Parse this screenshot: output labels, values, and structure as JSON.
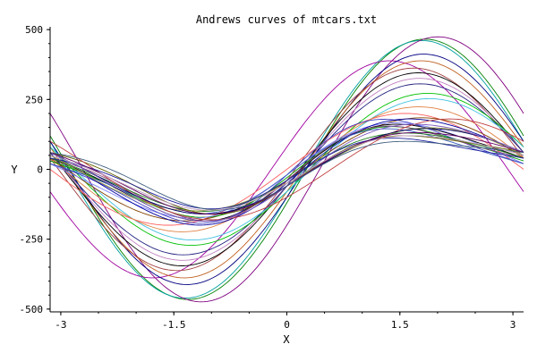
{
  "chart_data": {
    "type": "line",
    "title": "Andrews curves of mtcars.txt",
    "xlabel": "X",
    "ylabel": "Y",
    "xlim": [
      -3.14159,
      3.14159
    ],
    "ylim": [
      -510,
      510
    ],
    "xticks": [
      -3,
      -1.5,
      0,
      1.5,
      3
    ],
    "xtick_labels": [
      "-3",
      "-1.5",
      "0",
      "1.5",
      "3"
    ],
    "yticks": [
      -500,
      -250,
      0,
      250,
      500
    ],
    "ytick_labels": [
      "-500",
      "-250",
      "0",
      "250",
      "500"
    ],
    "grid": false,
    "legend": "none",
    "series_note": "32 Andrews curves, one per row; f(t) = x1/sqrt(2) + x2 sin t + x3 cos t + x4 sin 2t + x5 cos 2t",
    "series": [
      {
        "color": "#008000",
        "coeffs": [
          0,
          450,
          -120,
          0,
          0
        ]
      },
      {
        "color": "#00a0a0",
        "coeffs": [
          0,
          450,
          -100,
          0,
          0
        ]
      },
      {
        "color": "#800080",
        "coeffs": [
          0,
          430,
          -200,
          0,
          0
        ]
      },
      {
        "color": "#a000a0",
        "coeffs": [
          0,
          380,
          80,
          0,
          0
        ]
      },
      {
        "color": "#000080",
        "coeffs": [
          0,
          400,
          -100,
          0,
          0
        ]
      },
      {
        "color": "#c06020",
        "coeffs": [
          0,
          380,
          -80,
          0,
          0
        ]
      },
      {
        "color": "#a04040",
        "coeffs": [
          0,
          360,
          -40,
          0,
          0
        ]
      },
      {
        "color": "#000000",
        "coeffs": [
          0,
          340,
          -60,
          0,
          0
        ]
      },
      {
        "color": "#c080c0",
        "coeffs": [
          0,
          320,
          -60,
          0,
          0
        ]
      },
      {
        "color": "#202080",
        "coeffs": [
          0,
          300,
          -60,
          0,
          0
        ]
      },
      {
        "color": "#00c000",
        "coeffs": [
          0,
          260,
          -80,
          0,
          0
        ]
      },
      {
        "color": "#40c0e0",
        "coeffs": [
          0,
          240,
          -80,
          0,
          0
        ]
      },
      {
        "color": "#ff6060",
        "coeffs": [
          0,
          200,
          0,
          0,
          0
        ]
      },
      {
        "color": "#804000",
        "coeffs": [
          0,
          180,
          -40,
          0,
          0
        ]
      },
      {
        "color": "#e08040",
        "coeffs": [
          0,
          220,
          -40,
          0,
          0
        ]
      },
      {
        "color": "#00a000",
        "coeffs": [
          0,
          150,
          -30,
          30,
          0
        ]
      },
      {
        "color": "#8080ff",
        "coeffs": [
          0,
          165,
          -20,
          20,
          0
        ]
      },
      {
        "color": "#000000",
        "coeffs": [
          0,
          160,
          -40,
          30,
          0
        ]
      },
      {
        "color": "#4040c0",
        "coeffs": [
          0,
          170,
          -20,
          40,
          0
        ]
      },
      {
        "color": "#0000a0",
        "coeffs": [
          0,
          180,
          -50,
          20,
          0
        ]
      },
      {
        "color": "#804080",
        "coeffs": [
          0,
          150,
          -40,
          40,
          0
        ]
      },
      {
        "color": "#4060c0",
        "coeffs": [
          0,
          140,
          -20,
          30,
          0
        ]
      },
      {
        "color": "#208020",
        "coeffs": [
          0,
          130,
          -40,
          20,
          0
        ]
      },
      {
        "color": "#606000",
        "coeffs": [
          0,
          120,
          -60,
          30,
          0
        ]
      },
      {
        "color": "#c04040",
        "coeffs": [
          0,
          150,
          -100,
          0,
          0
        ]
      },
      {
        "color": "#a0a040",
        "coeffs": [
          0,
          140,
          -50,
          0,
          0
        ]
      },
      {
        "color": "#000060",
        "coeffs": [
          0,
          140,
          -60,
          10,
          0
        ]
      },
      {
        "color": "#8060c0",
        "coeffs": [
          0,
          160,
          -60,
          20,
          0
        ]
      },
      {
        "color": "#2020a0",
        "coeffs": [
          0,
          110,
          -40,
          30,
          0
        ]
      },
      {
        "color": "#600060",
        "coeffs": [
          0,
          130,
          -60,
          20,
          0
        ]
      },
      {
        "color": "#406080",
        "coeffs": [
          0,
          100,
          -60,
          30,
          0
        ]
      },
      {
        "color": "#c0a0c0",
        "coeffs": [
          0,
          120,
          -50,
          20,
          0
        ]
      }
    ]
  }
}
